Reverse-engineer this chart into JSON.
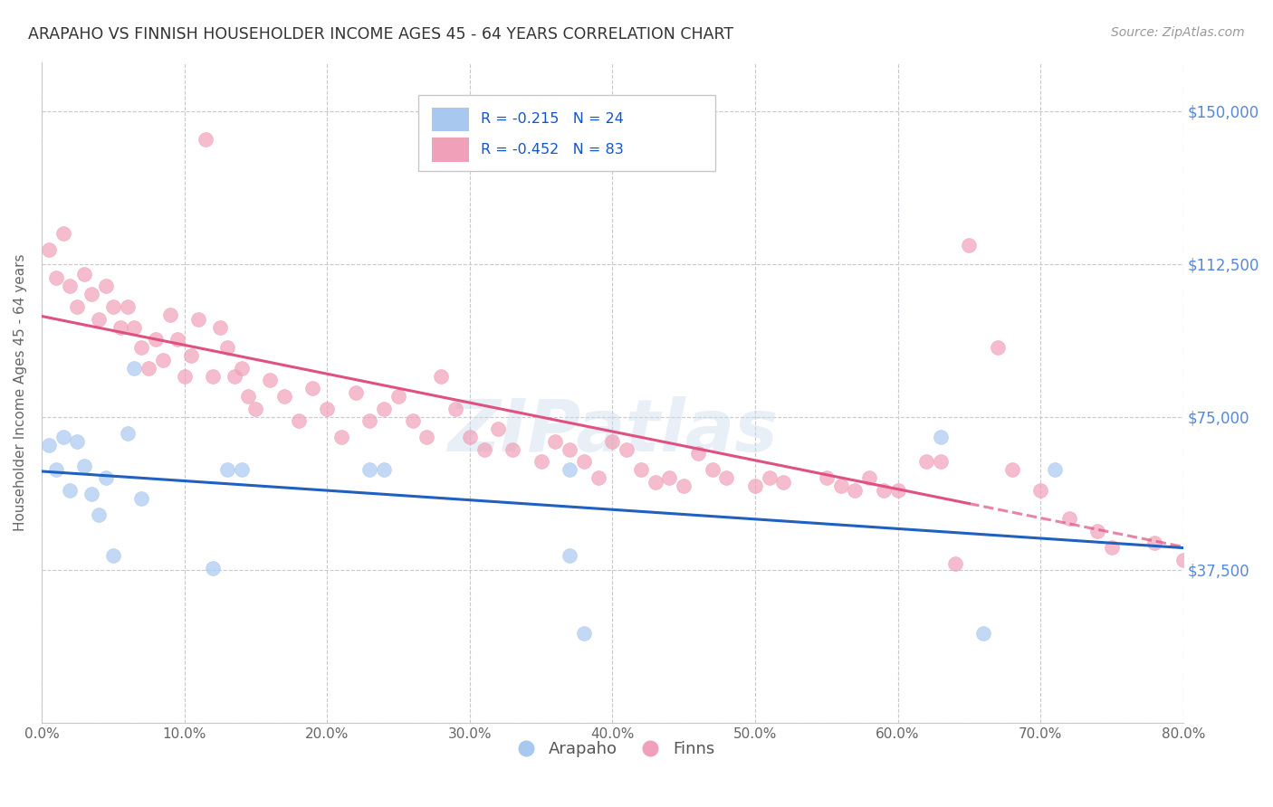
{
  "title": "ARAPAHO VS FINNISH HOUSEHOLDER INCOME AGES 45 - 64 YEARS CORRELATION CHART",
  "source": "Source: ZipAtlas.com",
  "xlabel_ticks": [
    "0.0%",
    "10.0%",
    "20.0%",
    "30.0%",
    "40.0%",
    "50.0%",
    "60.0%",
    "70.0%",
    "80.0%"
  ],
  "ylabel": "Householder Income Ages 45 - 64 years",
  "ylabel_ticks_right": [
    "$150,000",
    "$112,500",
    "$75,000",
    "$37,500"
  ],
  "ylabel_values": [
    0,
    37500,
    75000,
    112500,
    150000
  ],
  "xlim": [
    0.0,
    0.8
  ],
  "ylim": [
    18000,
    162000
  ],
  "legend_r_arapaho": "R = -0.215",
  "legend_n_arapaho": "N = 24",
  "legend_r_finns": "R = -0.452",
  "legend_n_finns": "N = 83",
  "arapaho_color": "#a8c8f0",
  "finns_color": "#f0a0b8",
  "arapaho_line_color": "#2060c0",
  "finns_line_color": "#e05080",
  "watermark": "ZIPatlas",
  "background_color": "#ffffff",
  "grid_color": "#c8c8d0",
  "arapaho_x": [
    0.005,
    0.01,
    0.015,
    0.02,
    0.025,
    0.03,
    0.035,
    0.04,
    0.045,
    0.05,
    0.06,
    0.065,
    0.07,
    0.12,
    0.13,
    0.14,
    0.23,
    0.24,
    0.37,
    0.37,
    0.38,
    0.63,
    0.66,
    0.71
  ],
  "arapaho_y": [
    68000,
    62000,
    70000,
    57000,
    69000,
    63000,
    56000,
    51000,
    60000,
    41000,
    71000,
    87000,
    55000,
    38000,
    62000,
    62000,
    62000,
    62000,
    62000,
    41000,
    22000,
    70000,
    22000,
    62000
  ],
  "finns_x": [
    0.005,
    0.01,
    0.015,
    0.02,
    0.025,
    0.03,
    0.035,
    0.04,
    0.045,
    0.05,
    0.055,
    0.06,
    0.065,
    0.07,
    0.075,
    0.08,
    0.085,
    0.09,
    0.095,
    0.1,
    0.105,
    0.11,
    0.115,
    0.12,
    0.125,
    0.13,
    0.135,
    0.14,
    0.145,
    0.15,
    0.16,
    0.17,
    0.18,
    0.19,
    0.2,
    0.21,
    0.22,
    0.23,
    0.24,
    0.25,
    0.26,
    0.27,
    0.28,
    0.29,
    0.3,
    0.31,
    0.32,
    0.33,
    0.35,
    0.36,
    0.37,
    0.38,
    0.39,
    0.4,
    0.41,
    0.42,
    0.43,
    0.44,
    0.45,
    0.46,
    0.47,
    0.48,
    0.5,
    0.51,
    0.52,
    0.55,
    0.56,
    0.57,
    0.58,
    0.59,
    0.6,
    0.62,
    0.63,
    0.64,
    0.65,
    0.67,
    0.68,
    0.7,
    0.72,
    0.74,
    0.75,
    0.78,
    0.8
  ],
  "finns_y": [
    116000,
    109000,
    120000,
    107000,
    102000,
    110000,
    105000,
    99000,
    107000,
    102000,
    97000,
    102000,
    97000,
    92000,
    87000,
    94000,
    89000,
    100000,
    94000,
    85000,
    90000,
    99000,
    143000,
    85000,
    97000,
    92000,
    85000,
    87000,
    80000,
    77000,
    84000,
    80000,
    74000,
    82000,
    77000,
    70000,
    81000,
    74000,
    77000,
    80000,
    74000,
    70000,
    85000,
    77000,
    70000,
    67000,
    72000,
    67000,
    64000,
    69000,
    67000,
    64000,
    60000,
    69000,
    67000,
    62000,
    59000,
    60000,
    58000,
    66000,
    62000,
    60000,
    58000,
    60000,
    59000,
    60000,
    58000,
    57000,
    60000,
    57000,
    57000,
    64000,
    64000,
    39000,
    117000,
    92000,
    62000,
    57000,
    50000,
    47000,
    43000,
    44000,
    40000
  ]
}
